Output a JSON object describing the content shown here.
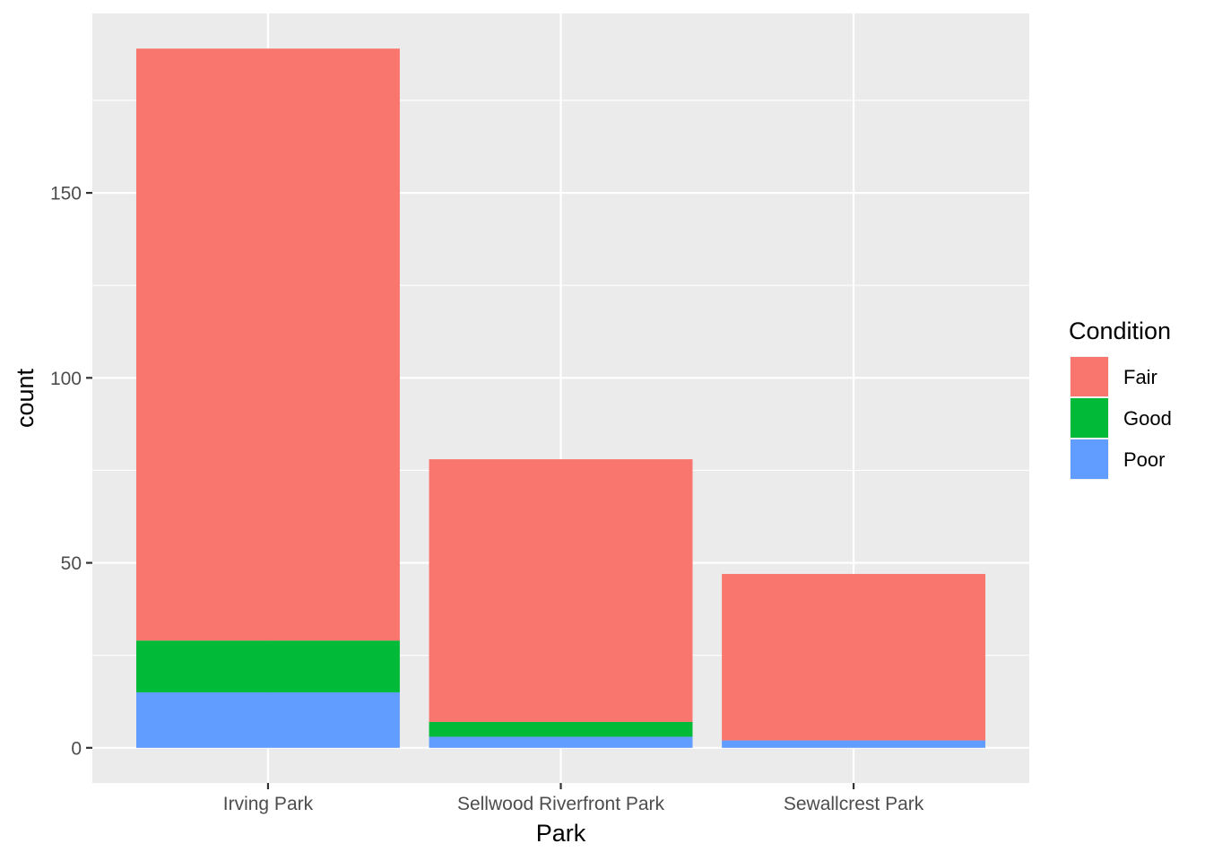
{
  "chart_data": {
    "type": "bar",
    "stacked": true,
    "xlabel": "Park",
    "ylabel": "count",
    "categories": [
      "Irving Park",
      "Sellwood Riverfront Park",
      "Sewallcrest Park"
    ],
    "series": [
      {
        "name": "Fair",
        "color": "#F8766D",
        "values": [
          160,
          71,
          45
        ]
      },
      {
        "name": "Good",
        "color": "#00BA38",
        "values": [
          14,
          4,
          0
        ]
      },
      {
        "name": "Poor",
        "color": "#619CFF",
        "values": [
          15,
          3,
          2
        ]
      }
    ],
    "stack_order_bottom_to_top": [
      "Poor",
      "Good",
      "Fair"
    ],
    "ylim": [
      -9.5,
      198.5
    ],
    "yticks": [
      0,
      50,
      100,
      150
    ],
    "ytick_labels": [
      "0",
      "50",
      "100",
      "150"
    ],
    "grid": true,
    "legend": {
      "title": "Condition",
      "position": "right",
      "items": [
        "Fair",
        "Good",
        "Poor"
      ]
    },
    "panel_background": "#EBEBEB",
    "grid_color": "#FFFFFF"
  }
}
